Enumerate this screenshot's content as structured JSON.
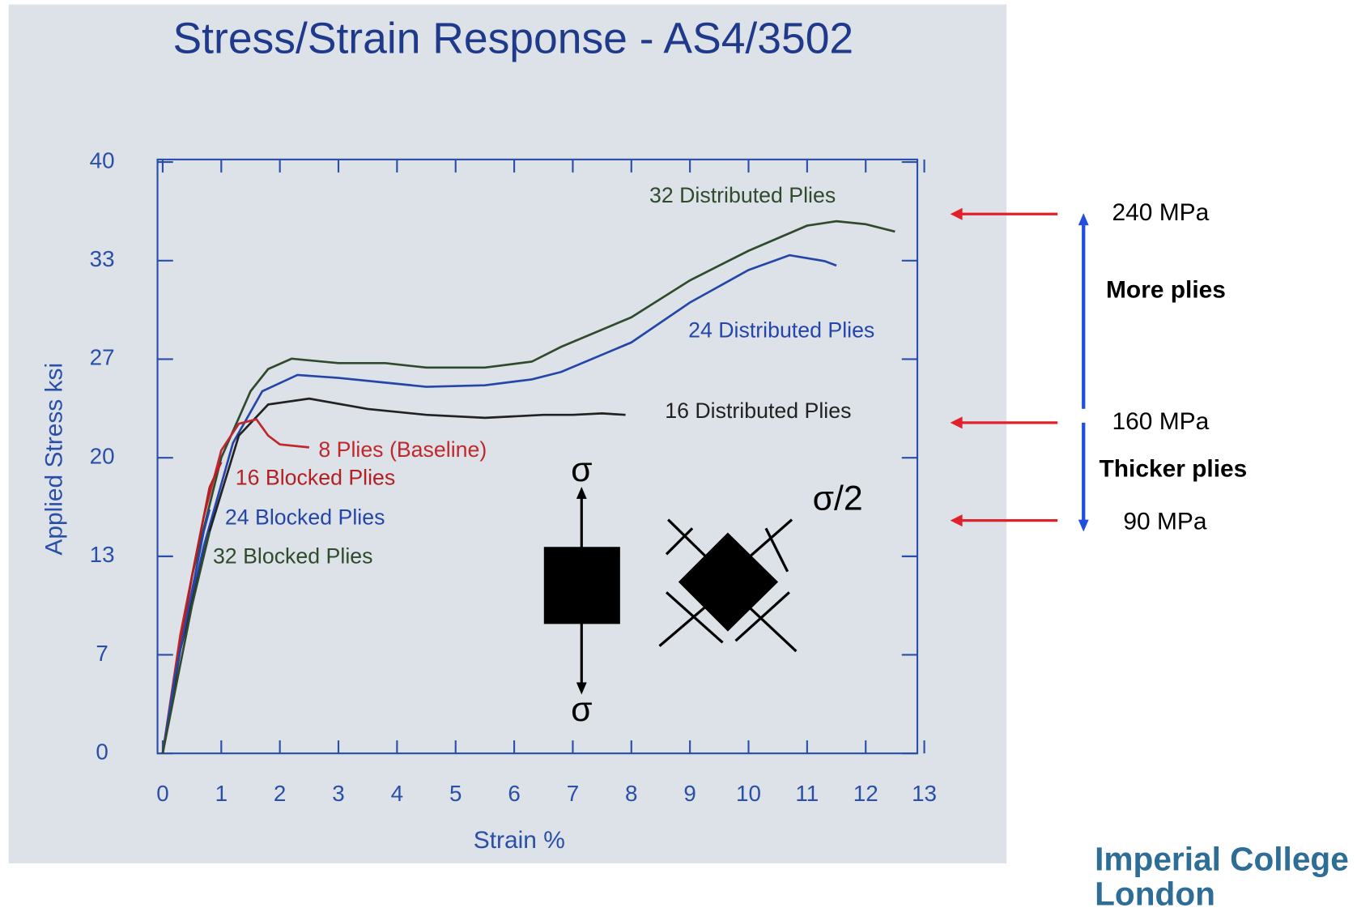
{
  "chart_data": {
    "type": "line",
    "title": "Stress/Strain Response - AS4/3502",
    "x_label": "Strain %",
    "y_label": "Applied Stress ksi",
    "xlim": [
      0,
      13
    ],
    "xticks": [
      0,
      1,
      2,
      3,
      4,
      5,
      6,
      7,
      8,
      9,
      10,
      11,
      12,
      13
    ],
    "ylim": [
      0,
      40
    ],
    "yticks": [
      0,
      {
        "value": 6.67,
        "label": "7"
      },
      {
        "value": 13.33,
        "label": "13"
      },
      20,
      {
        "value": 26.67,
        "label": "27"
      },
      {
        "value": 33.33,
        "label": "33"
      },
      40
    ],
    "grid": false,
    "series": [
      {
        "name": "32 Distributed Plies",
        "color": "#2f4a2c",
        "x": [
          0,
          0.2,
          0.5,
          1,
          1.5,
          1.8,
          2.2,
          3,
          3.8,
          4.5,
          5.5,
          6.3,
          6.8,
          8,
          9,
          10,
          11,
          11.5,
          12,
          12.5
        ],
        "values": [
          0,
          5,
          12,
          20,
          24.5,
          26,
          26.7,
          26.4,
          26.4,
          26.1,
          26.1,
          26.5,
          27.5,
          29.5,
          32,
          34,
          35.7,
          36,
          35.8,
          35.3
        ]
      },
      {
        "name": "24 Distributed Plies",
        "color": "#2546a8",
        "x": [
          0,
          0.3,
          0.7,
          1.2,
          1.7,
          2.3,
          3,
          4,
          4.5,
          5.5,
          6.3,
          6.8,
          8,
          9,
          10,
          10.7,
          11.3,
          11.5
        ],
        "values": [
          0,
          7,
          14,
          21,
          24.5,
          25.6,
          25.4,
          25,
          24.8,
          24.9,
          25.3,
          25.8,
          27.8,
          30.5,
          32.7,
          33.7,
          33.3,
          33
        ]
      },
      {
        "name": "16 Distributed Plies",
        "color": "#222222",
        "x": [
          0,
          0.3,
          0.8,
          1.3,
          1.8,
          2.5,
          3.5,
          4.5,
          5.5,
          6.5,
          7,
          7.5,
          7.9
        ],
        "values": [
          0,
          7,
          15,
          21.5,
          23.6,
          24,
          23.3,
          22.9,
          22.7,
          22.9,
          22.9,
          23,
          22.9
        ]
      },
      {
        "name": "8 Plies (Baseline)",
        "color": "#c0282d",
        "x": [
          0,
          0.3,
          0.7,
          1,
          1.3,
          1.6,
          1.8,
          2,
          2.5
        ],
        "values": [
          0,
          8,
          16,
          20.5,
          22.3,
          22.6,
          21.5,
          20.9,
          20.7
        ]
      },
      {
        "name": "16 Blocked Plies",
        "color": "#b32024",
        "x": [
          0,
          0.2,
          0.5,
          0.8,
          1
        ],
        "values": [
          0,
          5,
          12,
          18,
          19.7
        ]
      },
      {
        "name": "24 Blocked Plies",
        "color": "#2546a8",
        "x": [
          0,
          0.2,
          0.5,
          0.7,
          0.8
        ],
        "values": [
          0,
          5,
          11,
          15,
          16.5
        ]
      },
      {
        "name": "32 Blocked Plies",
        "color": "#2f4a2c",
        "x": [
          0,
          0.2,
          0.5,
          0.8
        ],
        "values": [
          0,
          4,
          10,
          15
        ]
      }
    ],
    "annotations": [
      "240 MPa",
      "More plies",
      "160 MPa",
      "Thicker plies",
      "90 MPa",
      "σ",
      "σ",
      "σ/2"
    ]
  },
  "logo": [
    "Imperial College",
    "London"
  ]
}
